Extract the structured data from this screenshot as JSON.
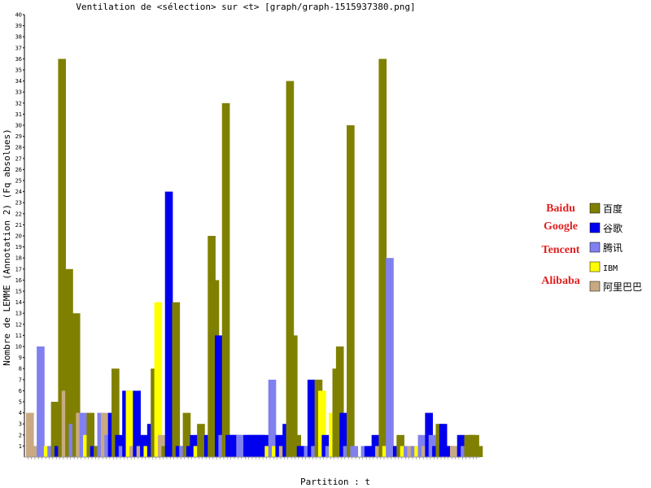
{
  "chart_data": {
    "type": "bar",
    "title": "Ventilation de <sélection> sur <t> [graph/graph-1515937380.png]",
    "xlabel": "Partition : t",
    "ylabel": "Nombre de LEMME (Annotation 2) (Fq absolues)",
    "ylim": [
      0,
      40
    ],
    "yticks": [
      1,
      2,
      3,
      4,
      5,
      6,
      7,
      8,
      9,
      10,
      11,
      12,
      13,
      14,
      15,
      16,
      17,
      18,
      19,
      20,
      21,
      22,
      23,
      24,
      25,
      26,
      27,
      28,
      29,
      30,
      31,
      32,
      33,
      34,
      35,
      36,
      37,
      38,
      39,
      40
    ],
    "legend_placement": "right",
    "grid": false,
    "series": [
      {
        "name": "百度",
        "label": "Baidu",
        "color": "#808000"
      },
      {
        "name": "谷歌",
        "label": "Google",
        "color": "#0000ee"
      },
      {
        "name": "腾讯",
        "label": "Tencent",
        "color": "#8080f0"
      },
      {
        "name": "IBM",
        "label": "",
        "color": "#ffff00"
      },
      {
        "name": "阿里巴巴",
        "label": "Alibaba",
        "color": "#c8aa82"
      }
    ],
    "bars": [
      {
        "s": 4,
        "v": 4
      },
      {
        "s": 4,
        "v": 1
      },
      {
        "s": 4,
        "v": 1
      },
      {
        "s": 2,
        "v": 10
      },
      {
        "s": 2,
        "v": 1
      },
      {
        "s": 3,
        "v": 1
      },
      {
        "s": 2,
        "v": 1
      },
      {
        "s": 0,
        "v": 5
      },
      {
        "s": 1,
        "v": 1
      },
      {
        "s": 0,
        "v": 36
      },
      {
        "s": 4,
        "v": 6
      },
      {
        "s": 0,
        "v": 17
      },
      {
        "s": 2,
        "v": 3
      },
      {
        "s": 0,
        "v": 13
      },
      {
        "s": 4,
        "v": 4
      },
      {
        "s": 2,
        "v": 4
      },
      {
        "s": 3,
        "v": 2
      },
      {
        "s": 0,
        "v": 4
      },
      {
        "s": 1,
        "v": 1
      },
      {
        "s": 0,
        "v": 1
      },
      {
        "s": 2,
        "v": 4
      },
      {
        "s": 4,
        "v": 4
      },
      {
        "s": 2,
        "v": 2
      },
      {
        "s": 1,
        "v": 4
      },
      {
        "s": 0,
        "v": 8
      },
      {
        "s": 1,
        "v": 2
      },
      {
        "s": 2,
        "v": 1
      },
      {
        "s": 1,
        "v": 6
      },
      {
        "s": 3,
        "v": 6
      },
      {
        "s": 4,
        "v": 1
      },
      {
        "s": 1,
        "v": 6
      },
      {
        "s": 4,
        "v": 1
      },
      {
        "s": 1,
        "v": 2
      },
      {
        "s": 3,
        "v": 1
      },
      {
        "s": 1,
        "v": 3
      },
      {
        "s": 0,
        "v": 8
      },
      {
        "s": 3,
        "v": 14
      },
      {
        "s": 4,
        "v": 2
      },
      {
        "s": 0,
        "v": 1
      },
      {
        "s": 1,
        "v": 24
      },
      {
        "s": 1,
        "v": 2
      },
      {
        "s": 0,
        "v": 14
      },
      {
        "s": 1,
        "v": 1
      },
      {
        "s": 2,
        "v": 1
      },
      {
        "s": 0,
        "v": 4
      },
      {
        "s": 1,
        "v": 1
      },
      {
        "s": 1,
        "v": 2
      },
      {
        "s": 3,
        "v": 1
      },
      {
        "s": 0,
        "v": 3
      },
      {
        "s": 0,
        "v": 1
      },
      {
        "s": 1,
        "v": 2
      },
      {
        "s": 0,
        "v": 20
      },
      {
        "s": 0,
        "v": 16
      },
      {
        "s": 1,
        "v": 11
      },
      {
        "s": 2,
        "v": 2
      },
      {
        "s": 0,
        "v": 32
      },
      {
        "s": 1,
        "v": 2
      },
      {
        "s": 1,
        "v": 2
      },
      {
        "s": 1,
        "v": 2
      },
      {
        "s": 2,
        "v": 2
      },
      {
        "s": 2,
        "v": 2
      },
      {
        "s": 1,
        "v": 2
      },
      {
        "s": 1,
        "v": 2
      },
      {
        "s": 1,
        "v": 2
      },
      {
        "s": 1,
        "v": 2
      },
      {
        "s": 1,
        "v": 2
      },
      {
        "s": 1,
        "v": 2
      },
      {
        "s": 3,
        "v": 1
      },
      {
        "s": 2,
        "v": 7
      },
      {
        "s": 3,
        "v": 1
      },
      {
        "s": 1,
        "v": 2
      },
      {
        "s": 4,
        "v": 1
      },
      {
        "s": 1,
        "v": 3
      },
      {
        "s": 0,
        "v": 34
      },
      {
        "s": 0,
        "v": 11
      },
      {
        "s": 0,
        "v": 2
      },
      {
        "s": 1,
        "v": 1
      },
      {
        "s": 1,
        "v": 1
      },
      {
        "s": 2,
        "v": 1
      },
      {
        "s": 1,
        "v": 7
      },
      {
        "s": 2,
        "v": 1
      },
      {
        "s": 0,
        "v": 7
      },
      {
        "s": 3,
        "v": 6
      },
      {
        "s": 1,
        "v": 2
      },
      {
        "s": 2,
        "v": 1
      },
      {
        "s": 3,
        "v": 4
      },
      {
        "s": 0,
        "v": 8
      },
      {
        "s": 0,
        "v": 10
      },
      {
        "s": 1,
        "v": 4
      },
      {
        "s": 2,
        "v": 1
      },
      {
        "s": 0,
        "v": 30
      },
      {
        "s": 2,
        "v": 1
      },
      {
        "s": 3,
        "v": 0
      },
      {
        "s": 4,
        "v": 0
      },
      {
        "s": 2,
        "v": 1
      },
      {
        "s": 1,
        "v": 1
      },
      {
        "s": 1,
        "v": 1
      },
      {
        "s": 1,
        "v": 2
      },
      {
        "s": 4,
        "v": 1
      },
      {
        "s": 0,
        "v": 36
      },
      {
        "s": 3,
        "v": 1
      },
      {
        "s": 2,
        "v": 18
      },
      {
        "s": 2,
        "v": 1
      },
      {
        "s": 1,
        "v": 1
      },
      {
        "s": 0,
        "v": 2
      },
      {
        "s": 3,
        "v": 1
      },
      {
        "s": 2,
        "v": 1
      },
      {
        "s": 4,
        "v": 1
      },
      {
        "s": 2,
        "v": 1
      },
      {
        "s": 3,
        "v": 1
      },
      {
        "s": 2,
        "v": 2
      },
      {
        "s": 4,
        "v": 1
      },
      {
        "s": 1,
        "v": 4
      },
      {
        "s": 2,
        "v": 2
      },
      {
        "s": 1,
        "v": 1
      },
      {
        "s": 0,
        "v": 3
      },
      {
        "s": 1,
        "v": 3
      },
      {
        "s": 1,
        "v": 1
      },
      {
        "s": 1,
        "v": 1
      },
      {
        "s": 4,
        "v": 1
      },
      {
        "s": 4,
        "v": 1
      },
      {
        "s": 1,
        "v": 2
      },
      {
        "s": 2,
        "v": 1
      },
      {
        "s": 0,
        "v": 2
      },
      {
        "s": 0,
        "v": 2
      },
      {
        "s": 0,
        "v": 2
      },
      {
        "s": 0,
        "v": 1
      }
    ]
  }
}
